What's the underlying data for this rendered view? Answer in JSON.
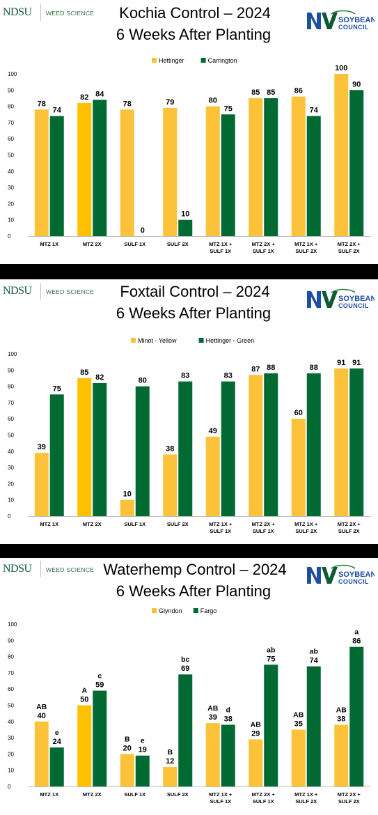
{
  "logos": {
    "ndsu": "NDSU",
    "unit": "WEED SCIENCE",
    "council_top": "SOYBEAN",
    "council_bottom": "COUNCIL"
  },
  "colors": {
    "series_yellow": "#ffc000",
    "series_yellow_light": "#fcc33a",
    "series_green": "#006a32",
    "divider": "#000000",
    "logo_green": "#0f5a34",
    "logo_blue": "#1c4ea1"
  },
  "chart_data": [
    {
      "type": "bar",
      "title_line1": "Kochia Control – 2024",
      "title_line2": "6 Weeks After Planting",
      "categories": [
        "MTZ 1X",
        "MTZ 2X",
        "SULF 1X",
        "SULF 2X",
        "MTZ 1X +\nSULF 1X",
        "MTZ 2X +\nSULF 1X",
        "MTZ 1X +\nSULF 2X",
        "MTZ 2X +\nSULF 2X"
      ],
      "series": [
        {
          "name": "Hettinger",
          "values": [
            78,
            82,
            78,
            79,
            80,
            85,
            86,
            100
          ],
          "letters": []
        },
        {
          "name": "Carrington",
          "values": [
            74,
            84,
            0,
            10,
            75,
            85,
            74,
            90
          ],
          "letters": []
        }
      ],
      "ylim": [
        0,
        100
      ],
      "yticks": [
        0,
        10,
        20,
        30,
        40,
        50,
        60,
        70,
        80,
        90,
        100
      ],
      "legend": "top-center"
    },
    {
      "type": "bar",
      "title_line1": "Foxtail Control – 2024",
      "title_line2": "6 Weeks After Planting",
      "categories": [
        "MTZ 1X",
        "MTZ 2X",
        "SULF 1X",
        "SULF 2X",
        "MTZ 1X +\nSULF 1X",
        "MTZ 2X +\nSULF 1X",
        "MTZ 1X +\nSULF 2X",
        "MTZ 2X +\nSULF 2X"
      ],
      "series": [
        {
          "name": "Minot - Yellow",
          "values": [
            39,
            85,
            10,
            38,
            49,
            87,
            60,
            91
          ],
          "letters": []
        },
        {
          "name": "Hettinger - Green",
          "values": [
            75,
            82,
            80,
            83,
            83,
            88,
            88,
            91
          ],
          "letters": []
        }
      ],
      "ylim": [
        0,
        100
      ],
      "yticks": [
        0,
        10,
        20,
        30,
        40,
        50,
        60,
        70,
        80,
        90,
        100
      ],
      "legend": "top-center"
    },
    {
      "type": "bar",
      "title_line1": "Waterhemp Control – 2024",
      "title_line2": "6 Weeks After Planting",
      "categories": [
        "MTZ 1X",
        "MTZ 2X",
        "SULF 1X",
        "SULF 2X",
        "MTZ 1X +\nSULF 1X",
        "MTZ 2X +\nSULF 1X",
        "MTZ 1X +\nSULF 2X",
        "MTZ 2X +\nSULF 2X"
      ],
      "series": [
        {
          "name": "Glyndon",
          "values": [
            40,
            50,
            20,
            12,
            39,
            29,
            35,
            38
          ],
          "letters": [
            "AB",
            "A",
            "B",
            "B",
            "AB",
            "AB",
            "AB",
            "AB"
          ]
        },
        {
          "name": "Fargo",
          "values": [
            24,
            59,
            19,
            69,
            38,
            75,
            74,
            86
          ],
          "letters": [
            "e",
            "c",
            "e",
            "bc",
            "d",
            "ab",
            "ab",
            "a"
          ]
        }
      ],
      "ylim": [
        0,
        100
      ],
      "yticks": [
        0,
        10,
        20,
        30,
        40,
        50,
        60,
        70,
        80,
        90,
        100
      ],
      "legend": "top-center"
    }
  ]
}
